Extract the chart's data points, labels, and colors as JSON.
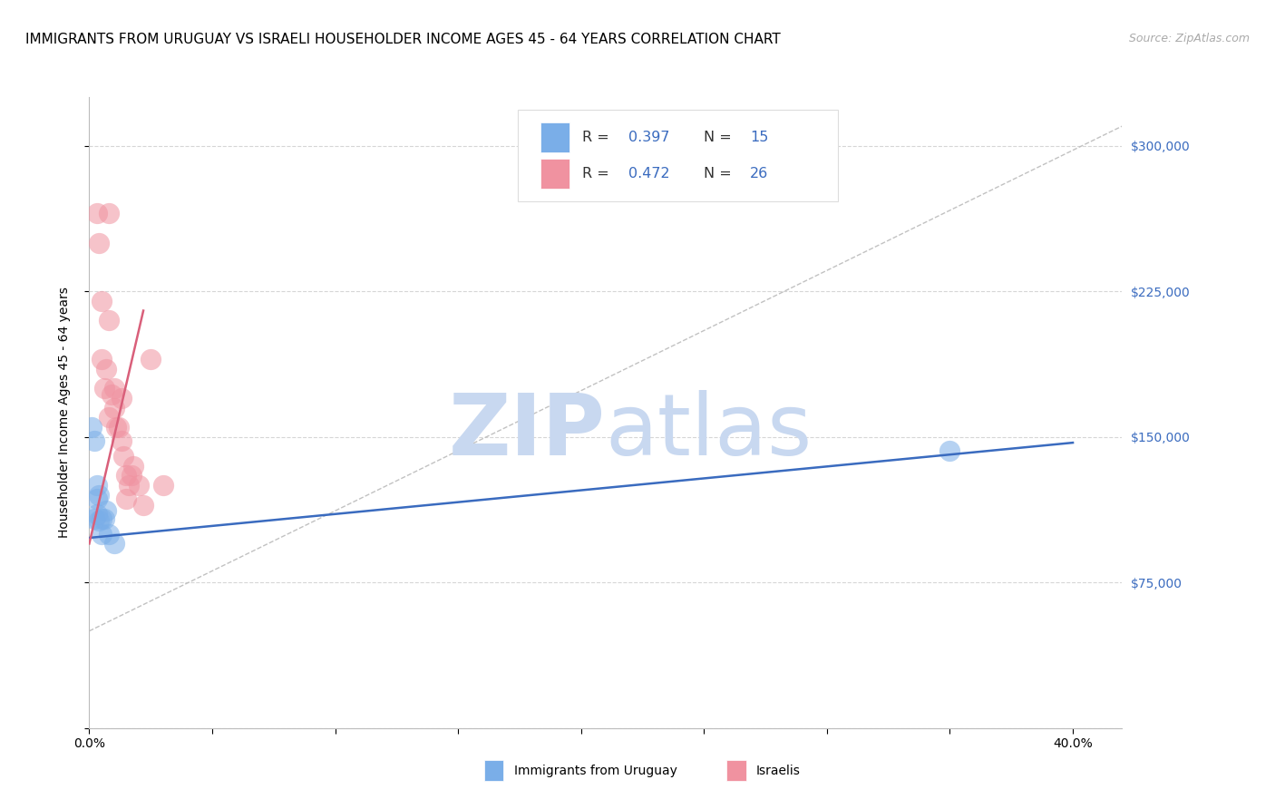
{
  "title": "IMMIGRANTS FROM URUGUAY VS ISRAELI HOUSEHOLDER INCOME AGES 45 - 64 YEARS CORRELATION CHART",
  "source": "Source: ZipAtlas.com",
  "ylabel": "Householder Income Ages 45 - 64 years",
  "xlim": [
    0.0,
    0.42
  ],
  "ylim": [
    0,
    325000
  ],
  "legend_r1": "R = 0.397",
  "legend_n1": "N = 15",
  "legend_r2": "R = 0.472",
  "legend_n2": "N = 26",
  "legend_label1": "Immigrants from Uruguay",
  "legend_label2": "Israelis",
  "blue_color": "#7aaee8",
  "pink_color": "#f092a0",
  "blue_line_color": "#3a6bbf",
  "pink_line_color": "#d95f7a",
  "background_color": "#ffffff",
  "grid_color": "#cccccc",
  "watermark_zip": "ZIP",
  "watermark_atlas": "atlas",
  "watermark_color": "#c8d8f0",
  "title_fontsize": 11,
  "axis_label_fontsize": 10,
  "tick_fontsize": 10,
  "blue_scatter_x": [
    0.001,
    0.002,
    0.002,
    0.003,
    0.003,
    0.003,
    0.004,
    0.004,
    0.005,
    0.005,
    0.006,
    0.007,
    0.008,
    0.01,
    0.35
  ],
  "blue_scatter_y": [
    155000,
    148000,
    108000,
    125000,
    118000,
    110000,
    120000,
    107000,
    108000,
    100000,
    108000,
    112000,
    100000,
    95000,
    143000
  ],
  "pink_scatter_x": [
    0.003,
    0.004,
    0.005,
    0.005,
    0.006,
    0.007,
    0.008,
    0.008,
    0.009,
    0.01,
    0.011,
    0.012,
    0.013,
    0.014,
    0.015,
    0.016,
    0.017,
    0.018,
    0.02,
    0.022,
    0.025,
    0.03,
    0.008,
    0.01,
    0.013,
    0.015
  ],
  "pink_scatter_y": [
    265000,
    250000,
    220000,
    190000,
    175000,
    185000,
    210000,
    160000,
    172000,
    165000,
    155000,
    155000,
    148000,
    140000,
    130000,
    125000,
    130000,
    135000,
    125000,
    115000,
    190000,
    125000,
    265000,
    175000,
    170000,
    118000
  ]
}
